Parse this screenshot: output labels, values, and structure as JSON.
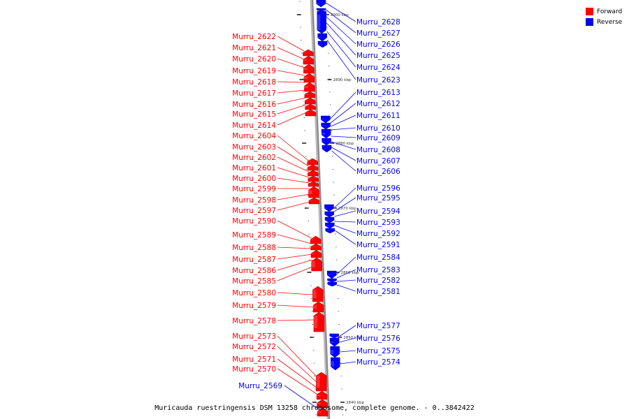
{
  "colors": {
    "forward": "#ff0000",
    "reverse": "#0000ff",
    "backbone": "#888888"
  },
  "legend": {
    "forward_label": "Forward",
    "reverse_label": "Reverse"
  },
  "caption": "Muricauda ruestringensis DSM 13258 chromosome, complete genome. - 0..3842422",
  "ruler_labels": [
    "2900 kbp",
    "2890 kbp",
    "2880 kbp",
    "2870 kbp",
    "2860 kbp",
    "2850 kbp",
    "2840 kbp"
  ],
  "forward_genes": [
    "Murru_2622",
    "Murru_2621",
    "Murru_2620",
    "Murru_2619",
    "Murru_2618",
    "Murru_2617",
    "Murru_2616",
    "Murru_2615",
    "Murru_2614",
    "Murru_2604",
    "Murru_2603",
    "Murru_2602",
    "Murru_2601",
    "Murru_2600",
    "Murru_2599",
    "Murru_2598",
    "Murru_2597",
    "Murru_2590",
    "Murru_2589",
    "Murru_2588",
    "Murru_2587",
    "Murru_2586",
    "Murru_2585",
    "Murru_2580",
    "Murru_2579",
    "Murru_2578",
    "Murru_2573",
    "Murru_2572",
    "Murru_2571",
    "Murru_2570"
  ],
  "reverse_genes": [
    "Murru_2628",
    "Murru_2627",
    "Murru_2626",
    "Murru_2625",
    "Murru_2624",
    "Murru_2623",
    "Murru_2613",
    "Murru_2612",
    "Murru_2611",
    "Murru_2610",
    "Murru_2609",
    "Murru_2608",
    "Murru_2607",
    "Murru_2606",
    "Murru_2596",
    "Murru_2595",
    "Murru_2594",
    "Murru_2593",
    "Murru_2592",
    "Murru_2591",
    "Murru_2584",
    "Murru_2583",
    "Murru_2582",
    "Murru_2581",
    "Murru_2577",
    "Murru_2576",
    "Murru_2575",
    "Murru_2574",
    "Murru_2569"
  ]
}
